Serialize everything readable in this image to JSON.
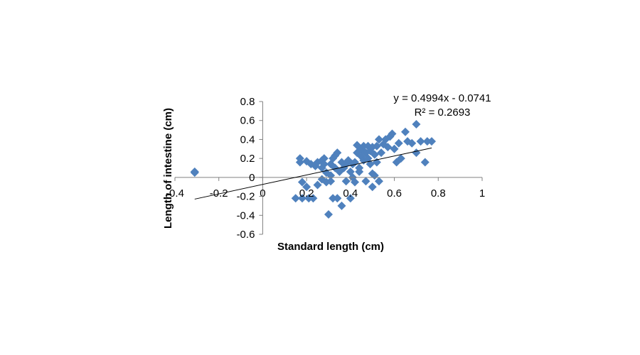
{
  "chart_data": {
    "type": "scatter",
    "xlabel": "Standard length (cm)",
    "ylabel": "Length of intestine (cm)",
    "xlim": [
      -0.4,
      1
    ],
    "ylim": [
      -0.6,
      0.8
    ],
    "x_ticks": [
      "-0.4",
      "-0.2",
      "0",
      "0.2",
      "0.4",
      "0.6",
      "0.8",
      "1"
    ],
    "y_ticks": [
      "0.8",
      "0.6",
      "0.4",
      "0.2",
      "0",
      "-0.2",
      "-0.4",
      "-0.6"
    ],
    "grid": false,
    "legend": "none",
    "marker_color": "#4f81bd",
    "marker_shape": "diamond",
    "trendline": {
      "slope": 0.4994,
      "intercept": -0.0741,
      "x_range": [
        -0.31,
        0.77
      ],
      "equation_label": "y = 0.4994x - 0.0741",
      "r2_label": "R² = 0.2693"
    },
    "points": [
      [
        -0.31,
        0.06
      ],
      [
        -0.31,
        0.05
      ],
      [
        0.15,
        -0.22
      ],
      [
        0.17,
        0.2
      ],
      [
        0.17,
        0.16
      ],
      [
        0.18,
        -0.05
      ],
      [
        0.18,
        -0.22
      ],
      [
        0.2,
        0.17
      ],
      [
        0.2,
        -0.1
      ],
      [
        0.21,
        -0.22
      ],
      [
        0.22,
        0.14
      ],
      [
        0.23,
        -0.22
      ],
      [
        0.24,
        0.12
      ],
      [
        0.25,
        0.16
      ],
      [
        0.25,
        -0.08
      ],
      [
        0.27,
        0.18
      ],
      [
        0.27,
        0.1
      ],
      [
        0.27,
        -0.02
      ],
      [
        0.28,
        0.2
      ],
      [
        0.28,
        0.14
      ],
      [
        0.29,
        0.05
      ],
      [
        0.29,
        -0.05
      ],
      [
        0.3,
        -0.39
      ],
      [
        0.31,
        0.14
      ],
      [
        0.31,
        0.02
      ],
      [
        0.31,
        -0.04
      ],
      [
        0.32,
        0.2
      ],
      [
        0.32,
        -0.22
      ],
      [
        0.33,
        0.23
      ],
      [
        0.33,
        0.1
      ],
      [
        0.34,
        0.26
      ],
      [
        0.34,
        -0.22
      ],
      [
        0.35,
        0.06
      ],
      [
        0.36,
        0.16
      ],
      [
        0.36,
        -0.3
      ],
      [
        0.37,
        0.1
      ],
      [
        0.38,
        0.14
      ],
      [
        0.38,
        -0.04
      ],
      [
        0.39,
        0.18
      ],
      [
        0.4,
        0.06
      ],
      [
        0.4,
        -0.22
      ],
      [
        0.41,
        0.14
      ],
      [
        0.41,
        0.0
      ],
      [
        0.42,
        -0.05
      ],
      [
        0.42,
        0.16
      ],
      [
        0.43,
        0.34
      ],
      [
        0.43,
        0.26
      ],
      [
        0.44,
        0.1
      ],
      [
        0.44,
        0.06
      ],
      [
        0.45,
        0.3
      ],
      [
        0.45,
        0.22
      ],
      [
        0.46,
        0.33
      ],
      [
        0.46,
        0.18
      ],
      [
        0.47,
        0.26
      ],
      [
        0.47,
        -0.04
      ],
      [
        0.48,
        0.33
      ],
      [
        0.48,
        0.2
      ],
      [
        0.49,
        0.28
      ],
      [
        0.49,
        0.14
      ],
      [
        0.5,
        0.32
      ],
      [
        0.5,
        0.04
      ],
      [
        0.5,
        -0.1
      ],
      [
        0.51,
        0.24
      ],
      [
        0.51,
        0.02
      ],
      [
        0.52,
        0.33
      ],
      [
        0.52,
        0.16
      ],
      [
        0.53,
        0.4
      ],
      [
        0.53,
        -0.04
      ],
      [
        0.54,
        0.26
      ],
      [
        0.55,
        0.35
      ],
      [
        0.56,
        0.4
      ],
      [
        0.57,
        0.32
      ],
      [
        0.58,
        0.43
      ],
      [
        0.59,
        0.46
      ],
      [
        0.6,
        0.3
      ],
      [
        0.61,
        0.16
      ],
      [
        0.62,
        0.36
      ],
      [
        0.63,
        0.2
      ],
      [
        0.65,
        0.48
      ],
      [
        0.66,
        0.38
      ],
      [
        0.68,
        0.36
      ],
      [
        0.7,
        0.56
      ],
      [
        0.7,
        0.26
      ],
      [
        0.72,
        0.38
      ],
      [
        0.74,
        0.16
      ],
      [
        0.75,
        0.38
      ],
      [
        0.77,
        0.38
      ]
    ]
  }
}
